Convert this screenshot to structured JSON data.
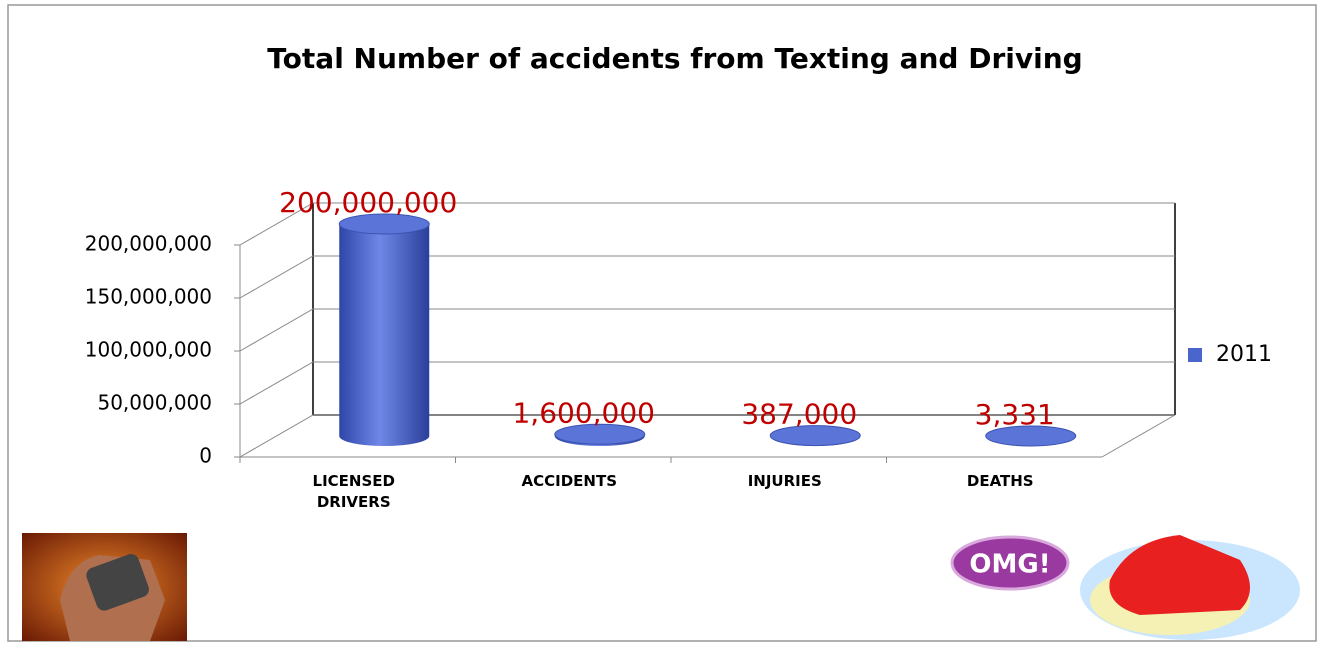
{
  "chart_data": {
    "type": "bar3d",
    "title": "Total Number of accidents from Texting and Driving",
    "categories": [
      "LICENSED DRIVERS",
      "ACCIDENTS",
      "INJURIES",
      "DEATHS"
    ],
    "series": [
      {
        "name": "2011",
        "color": "#4a66cc",
        "values": [
          200000000,
          1600000,
          387000,
          3331
        ],
        "value_labels": [
          "200,000,000",
          "1,600,000",
          "387,000",
          "3,331"
        ]
      }
    ],
    "ylim": [
      0,
      200000000
    ],
    "yticks": [
      {
        "value": 0,
        "label": "0"
      },
      {
        "value": 50000000,
        "label": "50,000,000"
      },
      {
        "value": 100000000,
        "label": "100,000,000"
      },
      {
        "value": 150000000,
        "label": "150,000,000"
      },
      {
        "value": 200000000,
        "label": "200,000,000"
      }
    ],
    "grid": true,
    "legend": "right",
    "value_label_color": "#c00000",
    "annotations": [
      "OMG!"
    ]
  }
}
